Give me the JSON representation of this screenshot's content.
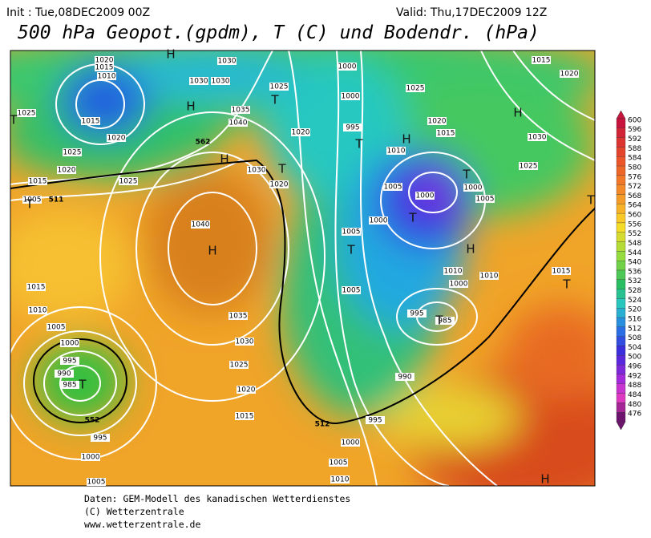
{
  "header": {
    "init": "Init : Tue,08DEC2009 00Z",
    "valid": "Valid: Thu,17DEC2009 12Z",
    "title": "500 hPa Geopot.(gpdm), T (C) und Bodendr. (hPa)"
  },
  "isobar_labels": [
    "1020",
    "1015",
    "1010",
    "1025",
    "1015",
    "1020",
    "1025",
    "1020",
    "1025",
    "1015",
    "1005",
    "1030",
    "1030",
    "1030",
    "1025",
    "1035",
    "1040",
    "1020",
    "1030",
    "1020",
    "1000",
    "1000",
    "995",
    "1010",
    "1025",
    "1020",
    "1015",
    "1030",
    "1025",
    "1015",
    "1020",
    "1005",
    "1000",
    "1000",
    "1005",
    "1000",
    "1005",
    "1040",
    "1015",
    "1010",
    "1005",
    "1000",
    "995",
    "990",
    "985",
    "1035",
    "1030",
    "1025",
    "1020",
    "1015",
    "995",
    "1000",
    "1005",
    "1005",
    "1010",
    "1010",
    "1000",
    "995",
    "985",
    "990",
    "995",
    "1000",
    "1005",
    "1010",
    "1015"
  ],
  "contour_labels": [
    "562",
    "552",
    "512",
    "511"
  ],
  "pressure_centers": [
    "H",
    "H",
    "T",
    "T",
    "H",
    "H",
    "T",
    "T",
    "H",
    "T",
    "T",
    "T",
    "H",
    "H",
    "T",
    "T",
    "T",
    "T",
    "H",
    "T"
  ],
  "colorbar": {
    "labels": [
      600,
      596,
      592,
      588,
      584,
      580,
      576,
      572,
      568,
      564,
      560,
      556,
      552,
      548,
      544,
      540,
      536,
      532,
      528,
      524,
      520,
      516,
      512,
      508,
      504,
      500,
      496,
      492,
      488,
      484,
      480,
      476
    ]
  },
  "footer": [
    "Daten: GEM-Modell des kanadischen Wetterdienstes",
    "(C) Wetterzentrale",
    "www.wetterzentrale.de"
  ]
}
